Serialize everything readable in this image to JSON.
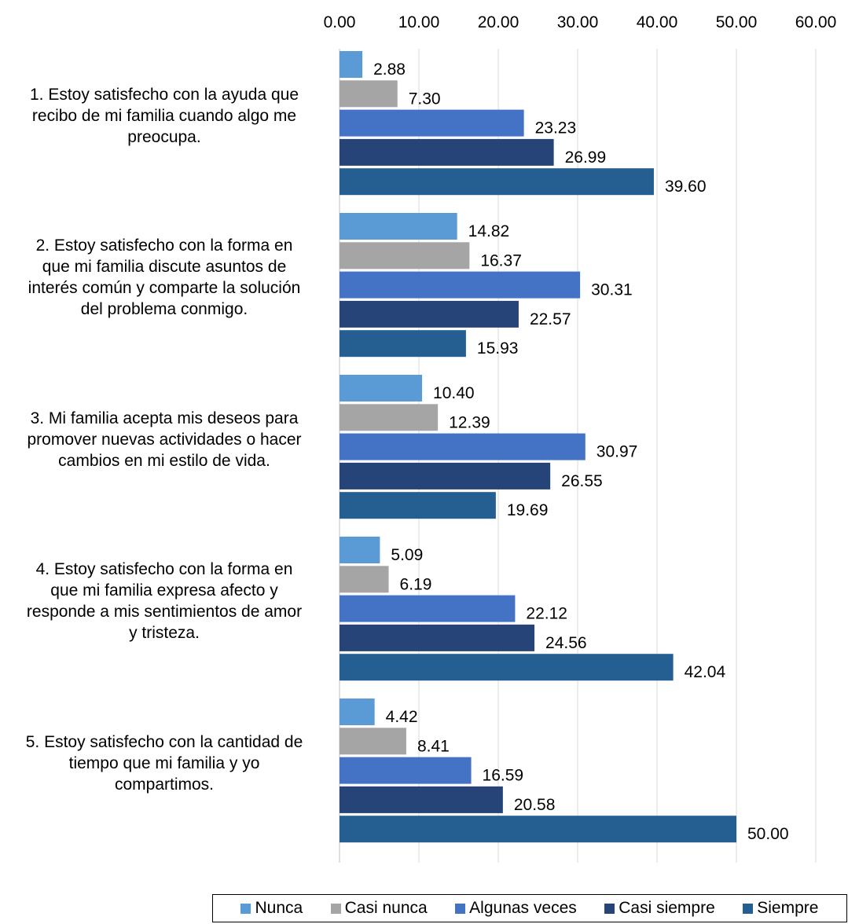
{
  "chart_data": {
    "type": "bar",
    "orientation": "horizontal",
    "categories": [
      "1. Estoy satisfecho con la ayuda que recibo de mi familia cuando algo me preocupa.",
      "2. Estoy satisfecho con la forma en que mi familia discute asuntos de interés común y comparte la solución del problema conmigo.",
      "3. Mi familia acepta mis deseos para promover nuevas actividades o hacer cambios en mi estilo de vida.",
      "4. Estoy satisfecho con la forma en que mi familia expresa afecto y responde a mis sentimientos de amor y tristeza.",
      "5. Estoy satisfecho con la cantidad de tiempo que mi familia y yo compartimos."
    ],
    "category_lines": [
      [
        "1. Estoy satisfecho con la ayuda que",
        "recibo de mi familia cuando algo me",
        "preocupa."
      ],
      [
        "2. Estoy satisfecho con la forma en",
        "que mi familia discute asuntos de",
        "interés común y comparte la solución",
        "del problema conmigo."
      ],
      [
        "3. Mi familia acepta mis deseos para",
        "promover nuevas actividades o hacer",
        "cambios en mi estilo de vida."
      ],
      [
        "4. Estoy satisfecho con la forma en",
        "que mi familia expresa afecto y",
        "responde a mis sentimientos de amor",
        "y tristeza."
      ],
      [
        "5. Estoy satisfecho con la cantidad de",
        "tiempo que mi familia y yo",
        "compartimos."
      ]
    ],
    "series": [
      {
        "name": "Nunca",
        "color": "#5b9bd5",
        "values": [
          2.88,
          14.82,
          10.4,
          5.09,
          4.42
        ],
        "labels": [
          "2.88",
          "14.82",
          "10.40",
          "5.09",
          "4.42"
        ]
      },
      {
        "name": "Casi nunca",
        "color": "#a5a5a5",
        "values": [
          7.3,
          16.37,
          12.39,
          6.19,
          8.41
        ],
        "labels": [
          "7.30",
          "16.37",
          "12.39",
          "6.19",
          "8.41"
        ]
      },
      {
        "name": "Algunas veces",
        "color": "#4472c4",
        "values": [
          23.23,
          30.31,
          30.97,
          22.12,
          16.59
        ],
        "labels": [
          "23.23",
          "30.31",
          "30.97",
          "22.12",
          "16.59"
        ]
      },
      {
        "name": "Casi siempre",
        "color": "#264478",
        "values": [
          26.99,
          22.57,
          26.55,
          24.56,
          20.58
        ],
        "labels": [
          "26.99",
          "22.57",
          "26.55",
          "24.56",
          "20.58"
        ]
      },
      {
        "name": "Siempre",
        "color": "#255e91",
        "values": [
          39.6,
          15.93,
          19.69,
          42.04,
          50.0
        ],
        "labels": [
          "39.60",
          "15.93",
          "19.69",
          "42.04",
          "50.00"
        ]
      }
    ],
    "xlim": [
      0,
      60
    ],
    "ticks": [
      "0.00",
      "10.00",
      "20.00",
      "30.00",
      "40.00",
      "50.00",
      "60.00"
    ],
    "axis_position": "top",
    "grid": true,
    "legend_position": "bottom-right"
  }
}
